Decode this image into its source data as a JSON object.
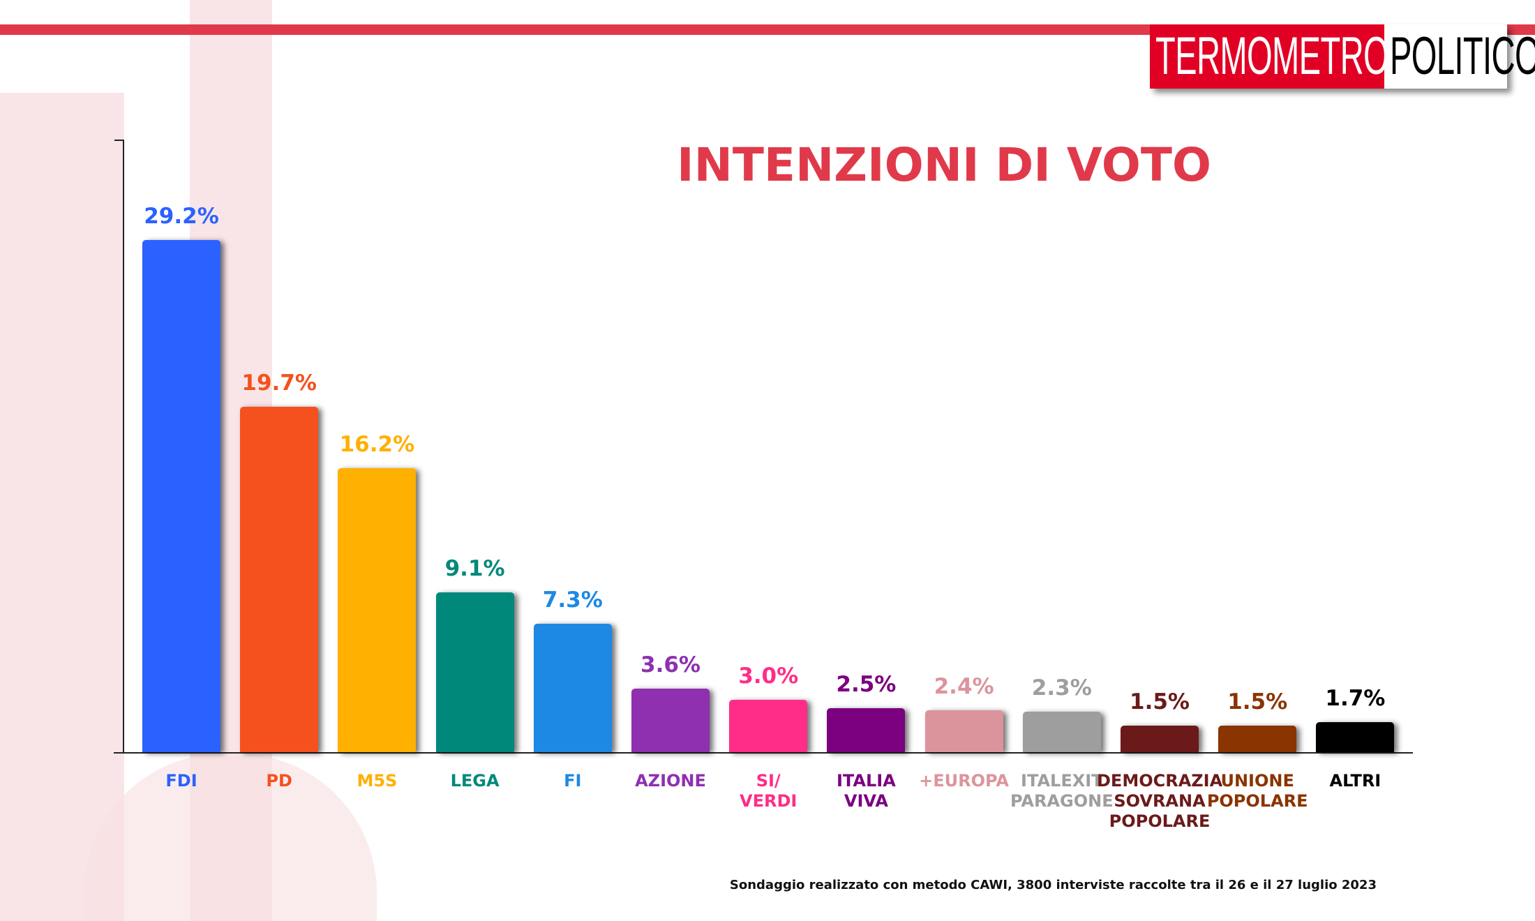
{
  "logo": {
    "part1": "TERMOMETRO",
    "part2": "POLITICO"
  },
  "colors": {
    "accent": "#e03a4a",
    "logo_red": "#e10024"
  },
  "chart_data": {
    "type": "bar",
    "title": "INTENZIONI DI VOTO",
    "xlabel": "",
    "ylabel": "",
    "ylim": [
      0,
      35
    ],
    "categories": [
      "FDI",
      "PD",
      "M5S",
      "LEGA",
      "FI",
      "AZIONE",
      "SI/\nVERDI",
      "ITALIA\nVIVA",
      "+EUROPA",
      "ITALEXIT\nPARAGONE",
      "DEMOCRAZIA\nSOVRANA\nPOPOLARE",
      "UNIONE\nPOPOLARE",
      "ALTRI"
    ],
    "values": [
      29.2,
      19.7,
      16.2,
      9.1,
      7.3,
      3.6,
      3.0,
      2.5,
      2.4,
      2.3,
      1.5,
      1.5,
      1.7
    ],
    "value_labels": [
      "29.2%",
      "19.7%",
      "16.2%",
      "9.1%",
      "7.3%",
      "3.6%",
      "3.0%",
      "2.5%",
      "2.4%",
      "2.3%",
      "1.5%",
      "1.5%",
      "1.7%"
    ],
    "bar_colors": [
      "#2b62ff",
      "#f4511e",
      "#ffb000",
      "#00897b",
      "#1e88e5",
      "#8e30b0",
      "#ff2d87",
      "#7b0080",
      "#dc949c",
      "#9e9e9e",
      "#6b1a1a",
      "#8a3400",
      "#000000"
    ],
    "grid": false
  },
  "footnote": "Sondaggio realizzato con metodo CAWI, 3800 interviste raccolte tra il 26 e il 27 luglio 2023"
}
